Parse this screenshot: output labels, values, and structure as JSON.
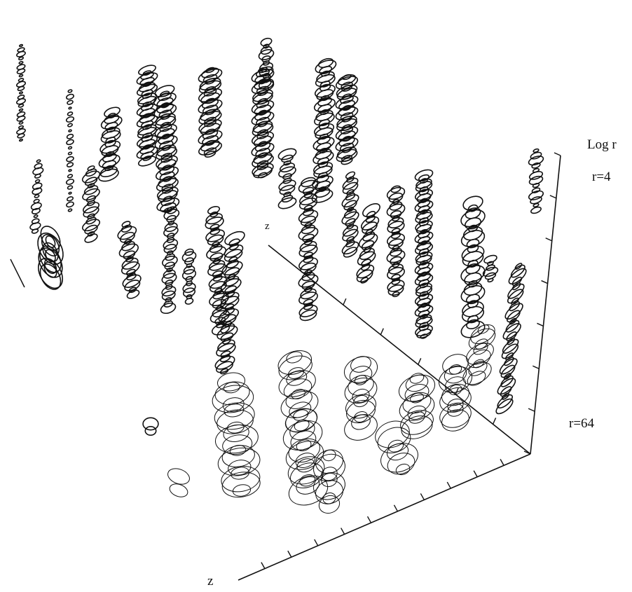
{
  "labels": {
    "axis_title": "Log r",
    "r_top": "r=4",
    "r_bottom": "r=64",
    "z_front": "z",
    "z_back": "z"
  }
}
